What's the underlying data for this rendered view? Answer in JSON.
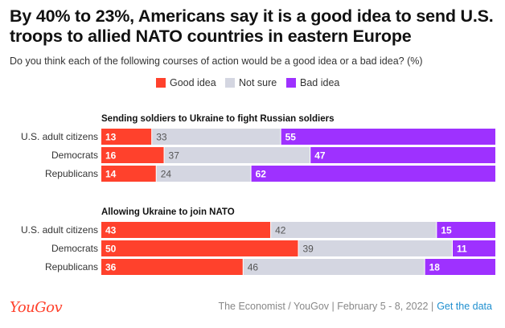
{
  "title": "By 40% to 23%, Americans say it is a good idea to send U.S. troops to allied NATO countries in eastern Europe",
  "subtitle": "Do you think each of the following courses of action would be a good idea or a bad idea? (%)",
  "colors": {
    "good": "#ff412c",
    "notsure": "#d4d6e1",
    "bad": "#9e31ff"
  },
  "chart_data": {
    "type": "bar",
    "stacked": true,
    "orientation": "horizontal",
    "legend": [
      {
        "key": "good",
        "label": "Good idea"
      },
      {
        "key": "notsure",
        "label": "Not sure"
      },
      {
        "key": "bad",
        "label": "Bad idea"
      }
    ],
    "groups": [
      {
        "title": "Sending soldiers to Ukraine to fight Russian soldiers",
        "rows": [
          {
            "label": "U.S. adult citizens",
            "good": 13,
            "notsure": 33,
            "bad": 55
          },
          {
            "label": "Democrats",
            "good": 16,
            "notsure": 37,
            "bad": 47
          },
          {
            "label": "Republicans",
            "good": 14,
            "notsure": 24,
            "bad": 62
          }
        ]
      },
      {
        "title": "Allowing Ukraine to join NATO",
        "rows": [
          {
            "label": "U.S. adult citizens",
            "good": 43,
            "notsure": 42,
            "bad": 15
          },
          {
            "label": "Democrats",
            "good": 50,
            "notsure": 39,
            "bad": 11
          },
          {
            "label": "Republicans",
            "good": 36,
            "notsure": 46,
            "bad": 18
          }
        ]
      }
    ]
  },
  "footer": {
    "logo": "YouGov",
    "source": "The Economist / YouGov | February 5 - 8, 2022 |",
    "link": "Get the data"
  }
}
